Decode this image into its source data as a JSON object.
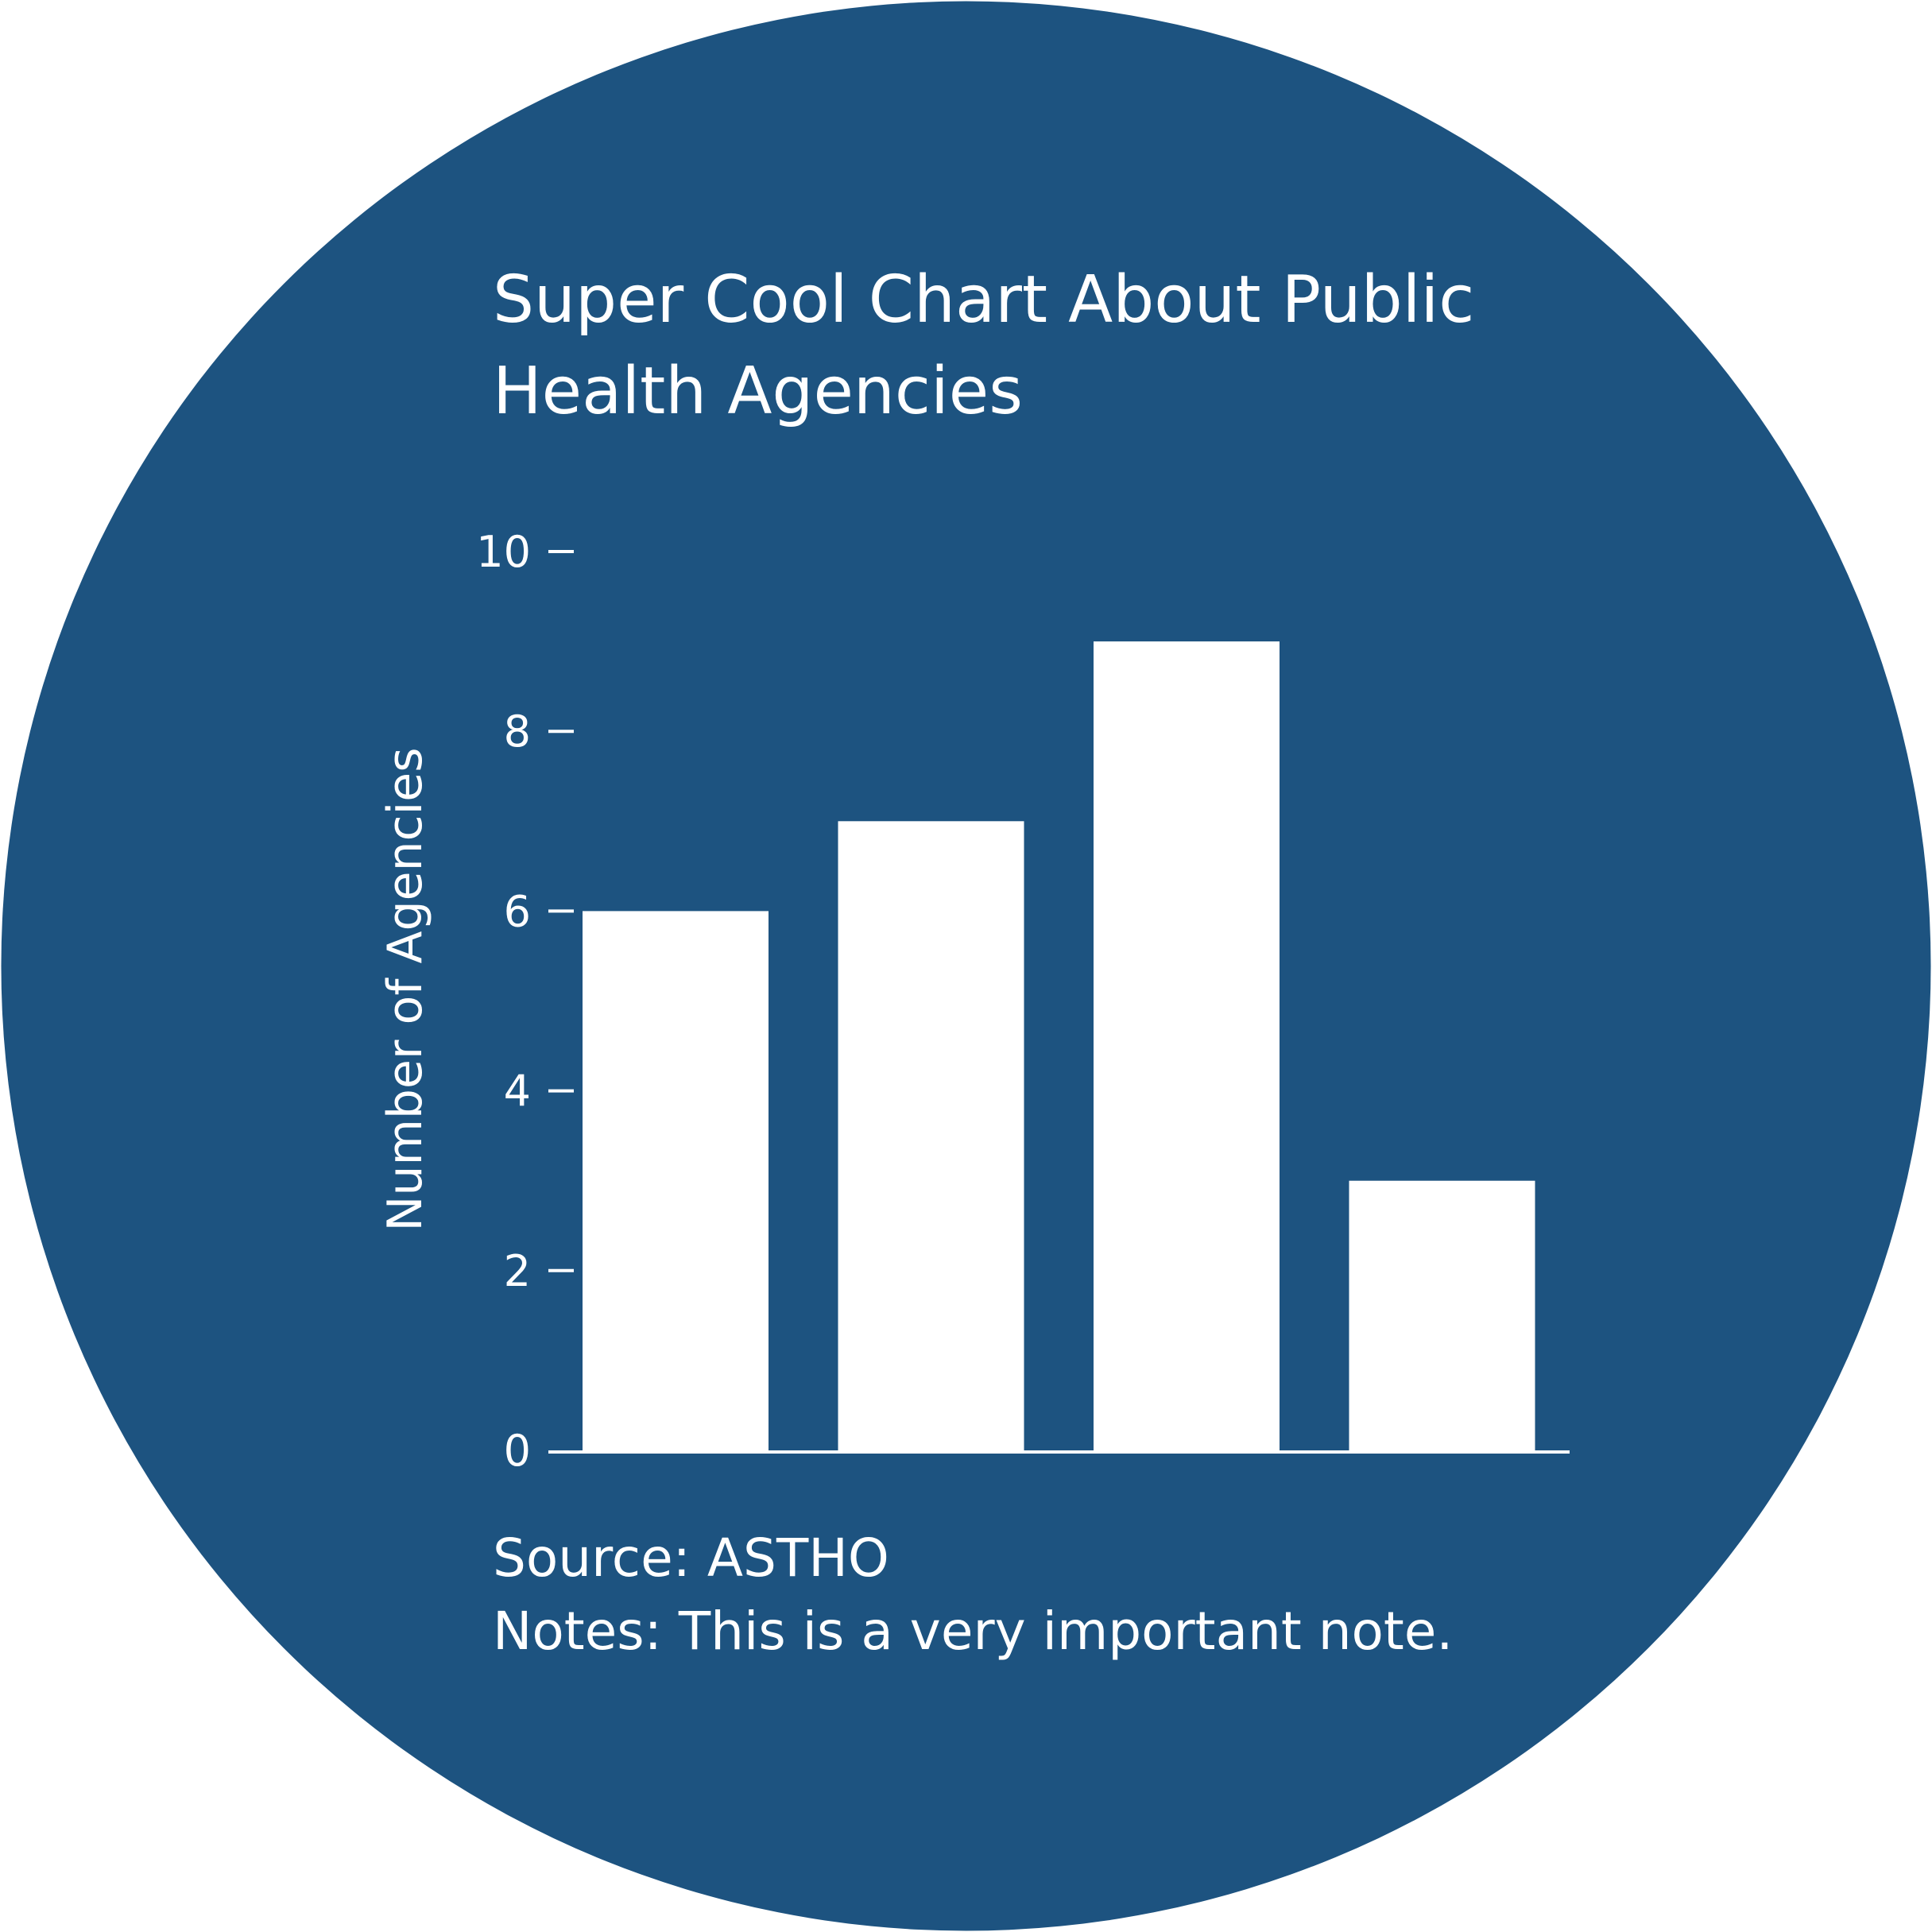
{
  "colors": {
    "background_circle": "#1d5380",
    "bars": "#ffffff",
    "text": "#ffffff",
    "page": "#ffffff"
  },
  "title_lines": [
    "Super Cool Chart About Public",
    "Health Agencies"
  ],
  "source_text": "Source: ASTHO",
  "notes_text": "Notes: This is a very important note.",
  "chart_data": {
    "type": "bar",
    "title": "Super Cool Chart About Public Health Agencies",
    "xlabel": "",
    "ylabel": "Number of Agencies",
    "categories": [
      "",
      "",
      "",
      ""
    ],
    "values": [
      6,
      7,
      9,
      3
    ],
    "ylim": [
      0,
      10
    ],
    "yticks": [
      0,
      2,
      4,
      6,
      8,
      10
    ],
    "ytick_labels": [
      "0",
      "2",
      "4",
      "6",
      "8",
      "10"
    ],
    "grid": false,
    "legend": "none"
  }
}
